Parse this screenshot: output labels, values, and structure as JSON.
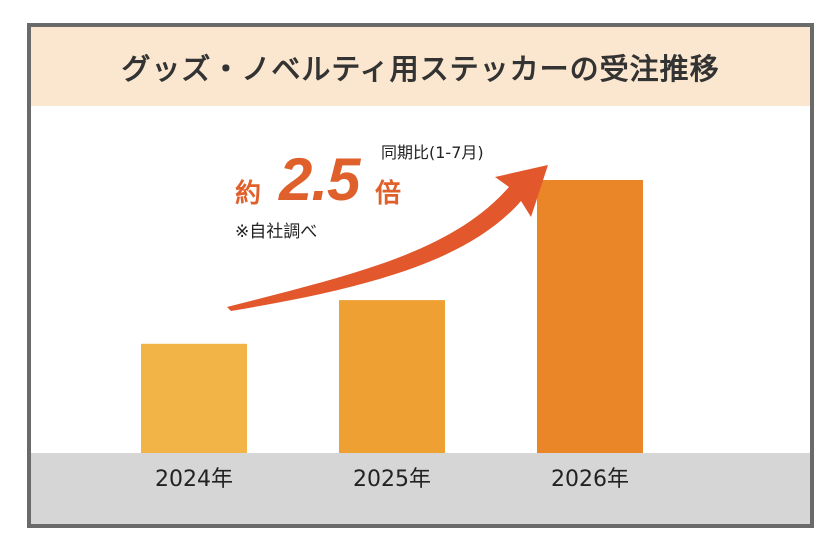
{
  "colors": {
    "title_band": "#fbe7cf",
    "floor": "#d6d6d6",
    "bar_2024": "#f2b446",
    "bar_2025": "#eea032",
    "bar_2026": "#ea8628",
    "arrow": "#e2572b",
    "callout_text": "#e0602c"
  },
  "callout": {
    "approx": "約",
    "multiplier": "2.5",
    "times": "倍",
    "period": "同期比(1-7月)",
    "source": "※自社調べ"
  },
  "chart_data": {
    "type": "bar",
    "title": "グッズ・ノベルティ用ステッカーの受注推移",
    "categories": [
      "2024年",
      "2025年",
      "2026年"
    ],
    "values": [
      1.0,
      1.4,
      2.5
    ],
    "xlabel": "",
    "ylabel": "",
    "ylim": [
      0,
      2.5
    ],
    "grid": false,
    "legend": "none",
    "annotation": "約2.5倍 同期比(1-7月) ※自社調べ"
  }
}
